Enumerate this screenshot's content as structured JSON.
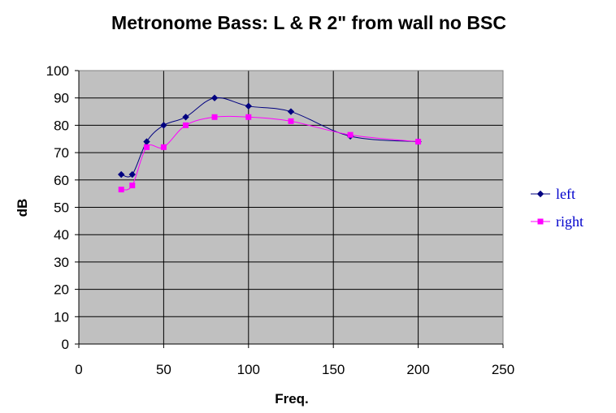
{
  "chart_data": {
    "type": "line",
    "title": "Metronome Bass: L & R 2\" from wall no BSC",
    "xlabel": "Freq.",
    "ylabel": "dB",
    "xlim": [
      0,
      250
    ],
    "ylim": [
      0,
      100
    ],
    "x_ticks": [
      "0",
      "50",
      "100",
      "150",
      "200",
      "250"
    ],
    "y_ticks": [
      "0",
      "10",
      "20",
      "30",
      "40",
      "50",
      "60",
      "70",
      "80",
      "90",
      "100"
    ],
    "grid": "vertical and horizontal major gridlines",
    "plot_background": "#c0c0c0",
    "legend_position": "right",
    "line_style": "smoothed",
    "series": [
      {
        "name": "left",
        "color": "#000080",
        "marker": "diamond",
        "x": [
          25,
          31.5,
          40,
          50,
          63,
          80,
          100,
          125,
          160,
          200
        ],
        "y": [
          62,
          62,
          74,
          80,
          83,
          90,
          87,
          85,
          76,
          74
        ]
      },
      {
        "name": "right",
        "color": "#ff00ff",
        "marker": "square",
        "x": [
          25,
          31.5,
          40,
          50,
          63,
          80,
          100,
          125,
          160,
          200
        ],
        "y": [
          56.5,
          58,
          72,
          72,
          80,
          83,
          83,
          81.5,
          76.5,
          74
        ]
      }
    ]
  }
}
